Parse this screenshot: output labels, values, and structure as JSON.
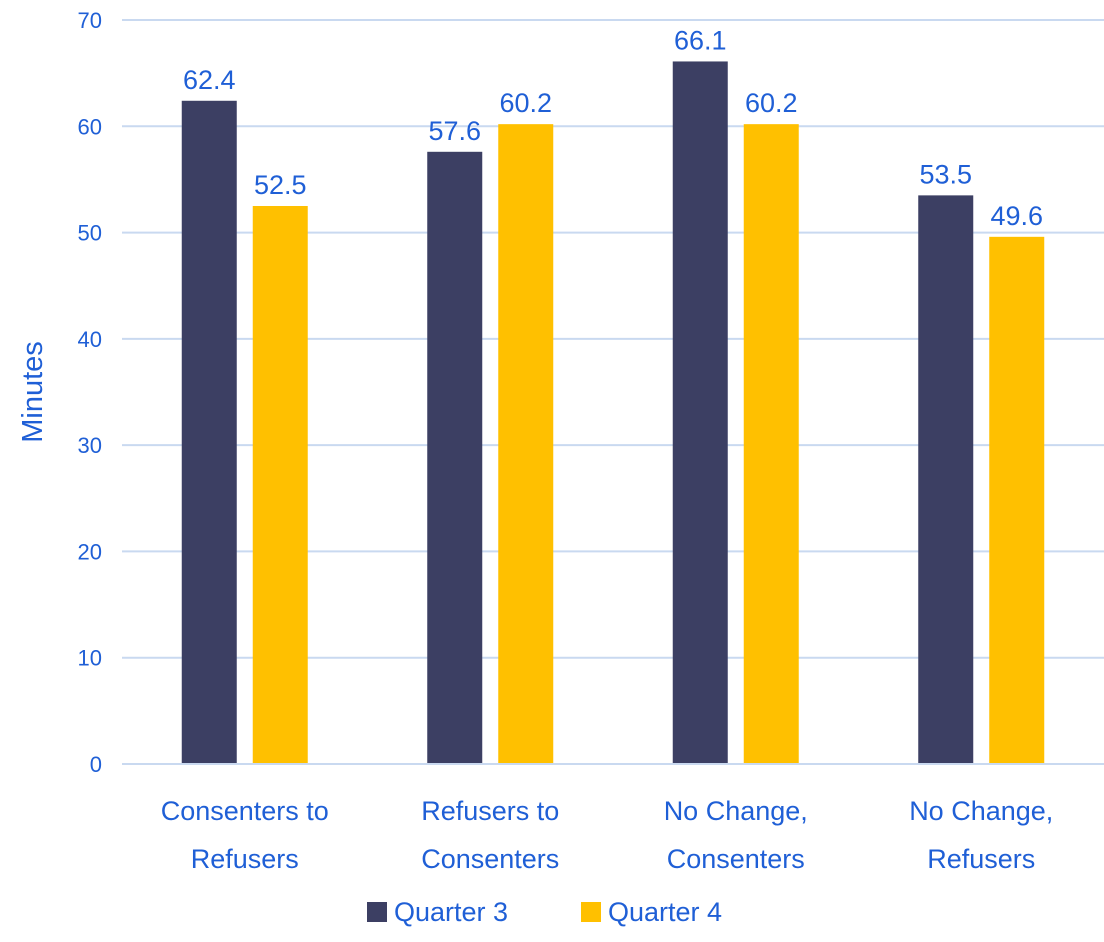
{
  "chart_data": {
    "type": "bar",
    "categories": [
      [
        "Consenters to",
        "Refusers"
      ],
      [
        "Refusers to",
        "Consenters"
      ],
      [
        "No Change,",
        "Consenters"
      ],
      [
        "No Change,",
        "Refusers"
      ]
    ],
    "series": [
      {
        "name": "Quarter 3",
        "values": [
          62.4,
          57.6,
          66.1,
          53.5
        ],
        "color": "#3c3f63"
      },
      {
        "name": "Quarter 4",
        "values": [
          52.5,
          60.2,
          60.2,
          49.6
        ],
        "color": "#ffc000"
      }
    ],
    "ylabel": "Minutes",
    "xlabel": "",
    "ylim": [
      0,
      70
    ],
    "yticks": [
      0,
      10,
      20,
      30,
      40,
      50,
      60,
      70
    ],
    "grid": true,
    "legend_position": "bottom",
    "text_color": "#1f5fd6",
    "grid_color": "#c9d9f0"
  }
}
